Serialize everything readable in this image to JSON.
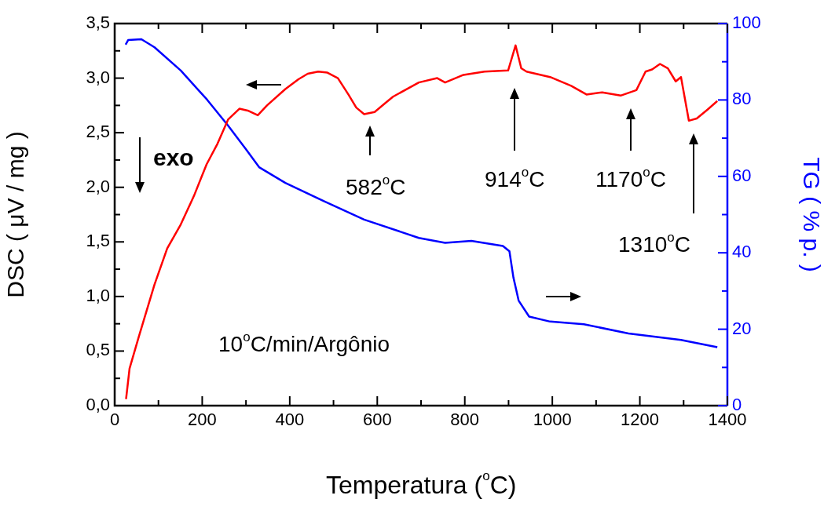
{
  "chart_data": {
    "type": "line",
    "xlabel": "Temperatura ($^{o}$C)",
    "ylabel": "DSC ( μV / mg )",
    "y2label": "TG ( % p. )",
    "xlim": [
      0,
      1400
    ],
    "xticks": [
      0,
      200,
      400,
      600,
      800,
      1000,
      1200,
      1400
    ],
    "ylim": [
      0,
      3.5
    ],
    "yticks": [
      {
        "value": 0,
        "label": "0,0"
      },
      {
        "value": 0.5,
        "label": "0,5"
      },
      {
        "value": 1,
        "label": "1,0"
      },
      {
        "value": 1.5,
        "label": "1,5"
      },
      {
        "value": 2,
        "label": "2,0"
      },
      {
        "value": 2.5,
        "label": "2,5"
      },
      {
        "value": 3,
        "label": "3,0"
      },
      {
        "value": 3.5,
        "label": "3,5"
      }
    ],
    "y2lim": [
      0,
      100
    ],
    "y2ticks": [
      0,
      20,
      40,
      60,
      80,
      100
    ],
    "grid": false,
    "legend": false,
    "marker": "none",
    "line_style": "solid",
    "series": [
      {
        "color": "#ff0000",
        "x": [
          26,
          34,
          55,
          91,
          120,
          151,
          181,
          210,
          235,
          259,
          285,
          306,
          327,
          348,
          390,
          420,
          441,
          465,
          486,
          510,
          534,
          552,
          570,
          594,
          618,
          636,
          695,
          737,
          755,
          797,
          845,
          899,
          916,
          929,
          941,
          995,
          1043,
          1078,
          1114,
          1156,
          1192,
          1213,
          1228,
          1246,
          1264,
          1282,
          1294,
          1312,
          1330,
          1354,
          1377
        ],
        "values": [
          0.06,
          0.34,
          0.63,
          1.11,
          1.44,
          1.66,
          1.92,
          2.21,
          2.4,
          2.62,
          2.72,
          2.7,
          2.66,
          2.75,
          2.9,
          2.99,
          3.04,
          3.06,
          3.05,
          3.0,
          2.85,
          2.73,
          2.67,
          2.69,
          2.77,
          2.83,
          2.96,
          3.0,
          2.96,
          3.03,
          3.06,
          3.07,
          3.3,
          3.09,
          3.06,
          3.01,
          2.93,
          2.85,
          2.87,
          2.84,
          2.89,
          3.06,
          3.08,
          3.13,
          3.09,
          2.97,
          3.01,
          2.61,
          2.63,
          2.71,
          2.79
        ]
      },
      {
        "color": "#0000ff",
        "axis": "y2",
        "x": [
          25,
          31,
          61,
          91,
          151,
          211,
          259,
          300,
          330,
          390,
          480,
          570,
          695,
          755,
          815,
          887,
          902,
          911,
          923,
          947,
          995,
          1072,
          1174,
          1294,
          1377
        ],
        "values": [
          94.5,
          95.7,
          95.9,
          93.8,
          87.7,
          80.1,
          73.3,
          67.1,
          62.4,
          58.3,
          53.4,
          48.7,
          43.9,
          42.6,
          43.1,
          41.8,
          40.4,
          33.6,
          27.5,
          23.3,
          22.0,
          21.3,
          18.9,
          17.2,
          15.3
        ]
      }
    ],
    "annotations": [
      "582$^{o}$C",
      "914$^{o}$C",
      "1170$^{o}$C",
      "1310$^{o}$C",
      "exo",
      "10$^{o}$C/min/Argônio"
    ]
  }
}
